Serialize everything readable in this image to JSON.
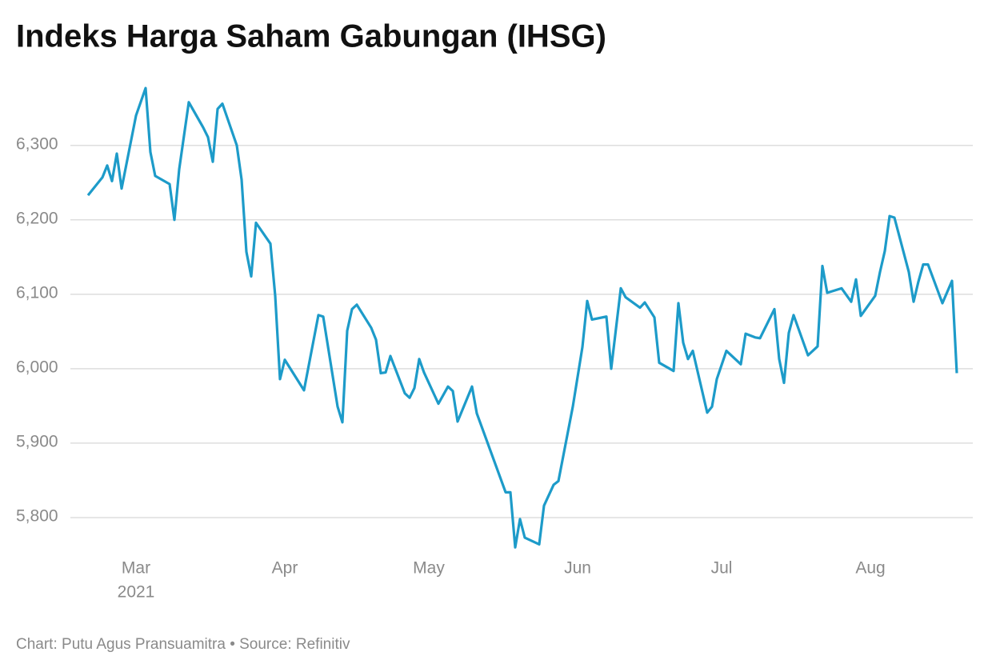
{
  "chart_data": {
    "type": "line",
    "title": "Indeks Harga Saham Gabungan (IHSG)",
    "footer": "Chart: Putu Agus Pransuamitra • Source: Refinitiv",
    "x_year_label": "2021",
    "x": [
      50,
      53,
      54,
      55,
      56,
      57,
      60,
      62,
      63,
      64,
      67,
      68,
      69,
      71,
      74,
      75,
      76,
      77,
      78,
      81,
      82,
      83,
      84,
      85,
      88,
      89,
      90,
      91,
      95,
      98,
      99,
      102,
      103,
      104,
      105,
      106,
      109,
      110,
      111,
      112,
      113,
      116,
      117,
      118,
      119,
      120,
      123,
      125,
      126,
      127,
      130,
      131,
      137,
      138,
      139,
      140,
      141,
      144,
      145,
      147,
      148,
      151,
      153,
      154,
      155,
      158,
      159,
      161,
      162,
      165,
      166,
      168,
      169,
      172,
      173,
      174,
      175,
      176,
      179,
      180,
      181,
      183,
      186,
      187,
      189,
      190,
      193,
      194,
      195,
      196,
      197,
      200,
      202,
      203,
      204,
      207,
      209,
      210,
      211,
      214,
      215,
      216,
      217,
      218,
      221,
      222,
      223,
      224,
      225,
      228,
      230,
      231
    ],
    "series": [
      {
        "name": "IHSG",
        "color": "#1d9bc9",
        "values": [
          6233,
          6257,
          6273,
          6252,
          6289,
          6242,
          6340,
          6377,
          6291,
          6259,
          6248,
          6200,
          6268,
          6358,
          6324,
          6311,
          6278,
          6349,
          6356,
          6300,
          6254,
          6157,
          6124,
          6196,
          6168,
          6098,
          5986,
          6012,
          5971,
          6072,
          6070,
          5949,
          5928,
          6051,
          6080,
          6086,
          6055,
          6039,
          5994,
          5995,
          6017,
          5967,
          5961,
          5974,
          6013,
          5995,
          5953,
          5976,
          5970,
          5929,
          5976,
          5940,
          5834,
          5834,
          5760,
          5798,
          5773,
          5764,
          5816,
          5844,
          5849,
          5949,
          6029,
          6091,
          6066,
          6070,
          6000,
          6108,
          6096,
          6082,
          6089,
          6069,
          6008,
          5997,
          6088,
          6035,
          6013,
          6024,
          5941,
          5949,
          5986,
          6024,
          6006,
          6047,
          6042,
          6041,
          6080,
          6013,
          5981,
          6048,
          6072,
          6018,
          6030,
          6138,
          6102,
          6108,
          6090,
          6120,
          6071,
          6098,
          6130,
          6158,
          6205,
          6203,
          6130,
          6090,
          6117,
          6140,
          6140,
          6088,
          6118,
          5994
        ]
      }
    ],
    "xlim": [
      48,
      234
    ],
    "xticks": [
      {
        "value": 60,
        "label": "Mar"
      },
      {
        "value": 91,
        "label": "Apr"
      },
      {
        "value": 121,
        "label": "May"
      },
      {
        "value": 152,
        "label": "Jun"
      },
      {
        "value": 182,
        "label": "Jul"
      },
      {
        "value": 213,
        "label": "Aug"
      }
    ],
    "ylim": [
      5750,
      6390
    ],
    "yticks": [
      {
        "value": 5800,
        "label": "5,800"
      },
      {
        "value": 5900,
        "label": "5,900"
      },
      {
        "value": 6000,
        "label": "6,000"
      },
      {
        "value": 6100,
        "label": "6,100"
      },
      {
        "value": 6200,
        "label": "6,200"
      },
      {
        "value": 6300,
        "label": "6,300"
      }
    ],
    "grid": true
  }
}
